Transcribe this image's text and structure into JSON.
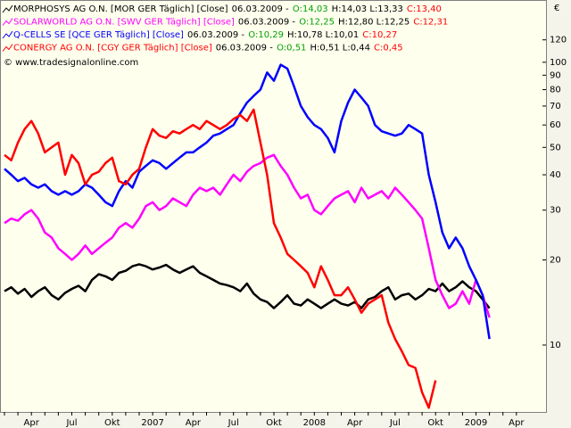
{
  "chart_data": {
    "type": "line",
    "currency": "€",
    "copyright": "© www.tradesignalonline.com",
    "log_scale": true,
    "grid": false,
    "ylim": [
      5.8,
      166
    ],
    "yticks": [
      10,
      20,
      30,
      40,
      50,
      60,
      70,
      80,
      90,
      100,
      120
    ],
    "categories": [
      null,
      null,
      null,
      null,
      "Apr",
      null,
      null,
      null,
      null,
      null,
      "Jul",
      null,
      null,
      null,
      null,
      null,
      "Okt",
      null,
      null,
      null,
      null,
      null,
      "2007",
      null,
      null,
      null,
      null,
      null,
      "Apr",
      null,
      null,
      null,
      null,
      null,
      "Jul",
      null,
      null,
      null,
      null,
      null,
      "Okt",
      null,
      null,
      null,
      null,
      null,
      "2008",
      null,
      null,
      null,
      null,
      null,
      "Apr",
      null,
      null,
      null,
      null,
      null,
      "Jul",
      null,
      null,
      null,
      null,
      null,
      "Okt",
      null,
      null,
      null,
      null,
      null,
      "2009",
      null,
      null,
      null,
      null,
      null,
      "Apr",
      null
    ],
    "series": [
      {
        "name": "MORPHOSYS AG O.N. [MOR GER  Täglich] [Close]",
        "date": "06.03.2009 -",
        "open": "O:14,03",
        "hl": "H:14,03 L:13,33",
        "close": "C:13,40",
        "color": "#000000",
        "values": [
          15.5,
          16,
          15.2,
          15.8,
          14.8,
          15.5,
          16,
          15,
          14.5,
          15.3,
          15.8,
          16.2,
          15.5,
          17,
          17.8,
          17.5,
          17,
          18,
          18.3,
          19,
          19.3,
          19,
          18.5,
          18.8,
          19.2,
          18.5,
          18,
          18.5,
          19,
          18,
          17.5,
          17,
          16.5,
          16.3,
          16,
          15.5,
          16.5,
          15.2,
          14.5,
          14.2,
          13.5,
          14.2,
          15,
          14,
          13.8,
          14.5,
          14,
          13.5,
          14,
          14.5,
          14,
          13.8,
          14.2,
          13.5,
          14.5,
          14.8,
          15.5,
          16,
          14.5,
          15,
          15.2,
          14.5,
          15,
          15.8,
          15.5,
          16.5,
          15.5,
          16,
          16.8,
          16,
          15.5,
          14.5,
          13.5,
          null,
          null,
          null,
          null,
          null
        ]
      },
      {
        "name": "SOLARWORLD AG O.N. [SWV GER  Täglich] [Close]",
        "date": "06.03.2009 -",
        "open": "O:12,25",
        "hl": "H:12,80 L:12,25",
        "close": "C:12,31",
        "color": "#ff00ff",
        "values": [
          27,
          28,
          27.5,
          29,
          30,
          28,
          25,
          24,
          22,
          21,
          20,
          21,
          22.5,
          21,
          22,
          23,
          24,
          26,
          27,
          26,
          28,
          31,
          32,
          30,
          31,
          33,
          32,
          31,
          34,
          36,
          35,
          36,
          34,
          37,
          40,
          38,
          41,
          43,
          44,
          46,
          47,
          43,
          40,
          36,
          33,
          34,
          30,
          29,
          31,
          33,
          34,
          35,
          32,
          36,
          33,
          34,
          35,
          33,
          36,
          34,
          32,
          30,
          28,
          22,
          17,
          15,
          13.5,
          14,
          15.5,
          14,
          17,
          15,
          12.5,
          null,
          null,
          null,
          null,
          null
        ]
      },
      {
        "name": "Q-CELLS SE [QCE GER  Täglich] [Close]",
        "date": "06.03.2009 -",
        "open": "O:10,29",
        "hl": "H:10,78 L:10,01",
        "close": "C:10,27",
        "color": "#0000ff",
        "values": [
          42,
          40,
          38,
          39,
          37,
          36,
          37,
          35,
          34,
          35,
          34,
          35,
          37,
          36,
          34,
          32,
          31,
          35,
          38,
          36,
          41,
          43,
          45,
          44,
          42,
          44,
          46,
          48,
          48,
          50,
          52,
          55,
          56,
          58,
          60,
          66,
          72,
          76,
          80,
          92,
          86,
          98,
          95,
          82,
          70,
          64,
          60,
          58,
          54,
          48,
          62,
          72,
          80,
          75,
          70,
          60,
          57,
          56,
          55,
          56,
          60,
          58,
          56,
          40,
          32,
          25,
          22,
          24,
          22,
          19,
          17,
          15,
          10.5,
          null,
          null,
          null,
          null,
          null
        ]
      },
      {
        "name": "CONERGY AG O.N. [CGY GER  Täglich] [Close]",
        "date": "06.03.2009 -",
        "open": "O:0,51",
        "hl": "H:0,51 L:0,44",
        "close": "C:0,45",
        "color": "#ff0000",
        "values": [
          47,
          45,
          52,
          58,
          62,
          56,
          48,
          50,
          52,
          40,
          47,
          44,
          37,
          40,
          41,
          44,
          46,
          38,
          37,
          40,
          42,
          50,
          58,
          55,
          54,
          57,
          56,
          58,
          60,
          58,
          62,
          60,
          58,
          60,
          63,
          65,
          62,
          68,
          52,
          40,
          27,
          24,
          21,
          20,
          19,
          18,
          16,
          19,
          17,
          15,
          15,
          16,
          14.5,
          13,
          14,
          14.5,
          15,
          12,
          10.5,
          9.5,
          8.5,
          8.3,
          6.8,
          6,
          7.5,
          null,
          null,
          null,
          null,
          null,
          null,
          null,
          null,
          null,
          null,
          null,
          null,
          null
        ]
      }
    ]
  }
}
